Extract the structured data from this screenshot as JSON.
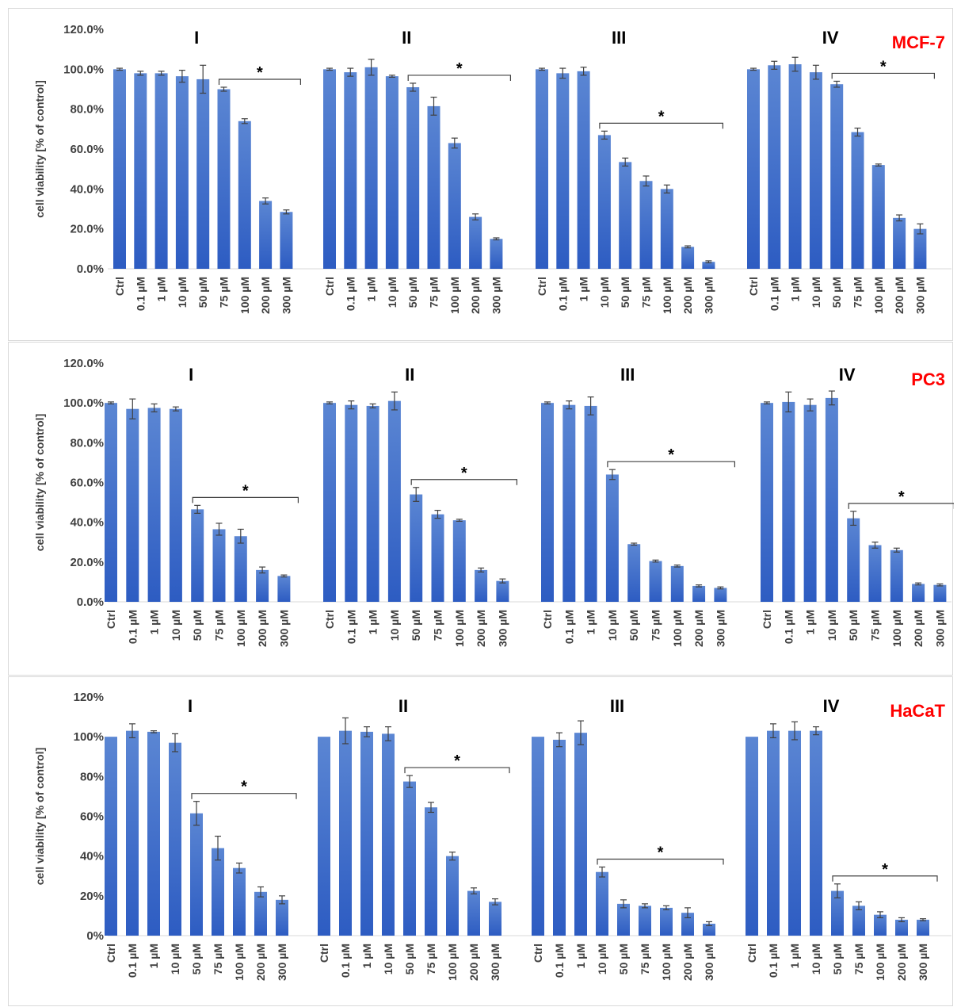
{
  "chart_data": [
    {
      "type": "bar",
      "cell_line": "MCF-7",
      "ylabel": "cell viability [% of control]",
      "ylim": [
        0,
        120
      ],
      "yticks": [
        "0.0%",
        "20.0%",
        "40.0%",
        "60.0%",
        "80.0%",
        "100.0%",
        "120.0%"
      ],
      "groups": [
        {
          "name": "I",
          "categories": [
            "Ctrl",
            "0.1 µM",
            "1 µM",
            "10 µM",
            "50 µM",
            "75 µM",
            "100 µM",
            "200 µM",
            "300 µM"
          ],
          "values": [
            100,
            98,
            98,
            96.5,
            95,
            90,
            74,
            34,
            28.5
          ],
          "errors": [
            0.5,
            1,
            1,
            3,
            7,
            1,
            1.2,
            1.5,
            1
          ],
          "significance": {
            "from": "75 µM",
            "to": "300 µM",
            "label": "*"
          }
        },
        {
          "name": "II",
          "categories": [
            "Ctrl",
            "0.1 µM",
            "1 µM",
            "10 µM",
            "50 µM",
            "75 µM",
            "100 µM",
            "200 µM",
            "300 µM"
          ],
          "values": [
            100,
            98.5,
            101,
            96.5,
            91,
            81.5,
            63,
            26,
            15
          ],
          "errors": [
            0.5,
            2,
            4,
            0.5,
            2,
            4.5,
            2.5,
            1.5,
            0.5
          ],
          "significance": {
            "from": "50 µM",
            "to": "300 µM",
            "label": "*"
          }
        },
        {
          "name": "III",
          "categories": [
            "Ctrl",
            "0.1 µM",
            "1 µM",
            "10 µM",
            "50 µM",
            "75 µM",
            "100 µM",
            "200 µM",
            "300 µM"
          ],
          "values": [
            100,
            98,
            99,
            67,
            53.5,
            44,
            40,
            11,
            3.5
          ],
          "errors": [
            0.5,
            2.5,
            2,
            2,
            2,
            2.5,
            2,
            0.5,
            0.5
          ],
          "significance": {
            "from": "10 µM",
            "to": "300 µM",
            "label": "*"
          }
        },
        {
          "name": "IV",
          "categories": [
            "Ctrl",
            "0.1 µM",
            "1 µM",
            "10 µM",
            "50 µM",
            "75 µM",
            "100 µM",
            "200 µM",
            "300 µM"
          ],
          "values": [
            100,
            102,
            102.5,
            98.5,
            92.5,
            68.5,
            52,
            25.5,
            20
          ],
          "errors": [
            0.5,
            2,
            3.5,
            3.5,
            1.5,
            2,
            0.5,
            1.5,
            2.5
          ],
          "significance": {
            "from": "50 µM",
            "to": "300 µM",
            "label": "*"
          }
        }
      ]
    },
    {
      "type": "bar",
      "cell_line": "PC3",
      "ylabel": "cell viability [% of control]",
      "ylim": [
        0,
        120
      ],
      "yticks": [
        "0.0%",
        "20.0%",
        "40.0%",
        "60.0%",
        "80.0%",
        "100.0%",
        "120.0%"
      ],
      "groups": [
        {
          "name": "I",
          "categories": [
            "Ctrl",
            "0.1 µM",
            "1 µM",
            "10 µM",
            "50 µM",
            "75 µM",
            "100 µM",
            "200 µM",
            "300 µM"
          ],
          "values": [
            100,
            97,
            97.5,
            97,
            46.5,
            36.5,
            33,
            16,
            13
          ],
          "errors": [
            0.5,
            5,
            2,
            1,
            2,
            3,
            3.5,
            1.5,
            0.5
          ],
          "significance": {
            "from": "50 µM",
            "to": "300 µM",
            "label": "*"
          }
        },
        {
          "name": "II",
          "categories": [
            "Ctrl",
            "0.1 µM",
            "1 µM",
            "10 µM",
            "50 µM",
            "75 µM",
            "100 µM",
            "200 µM",
            "300 µM"
          ],
          "values": [
            100,
            99,
            98.5,
            101,
            54,
            44,
            41,
            16,
            10.5
          ],
          "errors": [
            0.5,
            2,
            1,
            4.5,
            3.5,
            2,
            0.5,
            1,
            1
          ],
          "significance": {
            "from": "50 µM",
            "to": "300 µM",
            "label": "*"
          }
        },
        {
          "name": "III",
          "categories": [
            "Ctrl",
            "0.1 µM",
            "1 µM",
            "10 µM",
            "50 µM",
            "75 µM",
            "100 µM",
            "200 µM",
            "300 µM"
          ],
          "values": [
            100,
            99,
            98.5,
            64,
            29,
            20.5,
            18,
            8,
            7
          ],
          "errors": [
            0.5,
            2,
            4.5,
            2.5,
            0.5,
            0.5,
            0.5,
            0.5,
            0.5
          ],
          "significance": {
            "from": "10 µM",
            "to": "300 µM",
            "label": "*"
          }
        },
        {
          "name": "IV",
          "categories": [
            "Ctrl",
            "0.1 µM",
            "1 µM",
            "10 µM",
            "50 µM",
            "75 µM",
            "100 µM",
            "200 µM",
            "300 µM"
          ],
          "values": [
            100,
            100.5,
            99,
            102.5,
            42,
            28.5,
            26,
            9,
            8.5
          ],
          "errors": [
            0.5,
            5,
            3,
            3.5,
            3.5,
            1.5,
            1,
            0.5,
            0.5
          ],
          "significance": {
            "from": "50 µM",
            "to": "300 µM",
            "label": "*"
          }
        }
      ]
    },
    {
      "type": "bar",
      "cell_line": "HaCaT",
      "ylabel": "cell viability [% of control]",
      "ylim": [
        0,
        120
      ],
      "yticks": [
        "0%",
        "20%",
        "40%",
        "60%",
        "80%",
        "100%",
        "120%"
      ],
      "groups": [
        {
          "name": "I",
          "categories": [
            "Ctrl",
            "0.1 µM",
            "1 µM",
            "10 µM",
            "50 µM",
            "75 µM",
            "100 µM",
            "200 µM",
            "300 µM"
          ],
          "values": [
            100,
            103,
            102.5,
            97,
            61.5,
            44,
            34,
            22,
            18
          ],
          "errors": [
            0,
            3.5,
            0.5,
            4.5,
            6,
            6,
            2.5,
            2.5,
            2
          ],
          "significance": {
            "from": "50 µM",
            "to": "300 µM",
            "label": "*"
          }
        },
        {
          "name": "II",
          "categories": [
            "Ctrl",
            "0.1 µM",
            "1 µM",
            "10 µM",
            "50 µM",
            "75 µM",
            "100 µM",
            "200 µM",
            "300 µM"
          ],
          "values": [
            100,
            103,
            102.5,
            101.5,
            77.5,
            64.5,
            40,
            22.5,
            17
          ],
          "errors": [
            0,
            6.5,
            2.5,
            3.5,
            3,
            2.5,
            2,
            1.5,
            1.5
          ],
          "significance": {
            "from": "50 µM",
            "to": "300 µM",
            "label": "*"
          }
        },
        {
          "name": "III",
          "categories": [
            "Ctrl",
            "0.1 µM",
            "1 µM",
            "10 µM",
            "50 µM",
            "75 µM",
            "100 µM",
            "200 µM",
            "300 µM"
          ],
          "values": [
            100,
            98.5,
            102,
            32,
            16,
            15,
            14,
            11.5,
            6
          ],
          "errors": [
            0,
            3.5,
            6,
            2.5,
            2,
            1,
            1,
            2.5,
            1
          ],
          "significance": {
            "from": "10 µM",
            "to": "300 µM",
            "label": "*"
          }
        },
        {
          "name": "IV",
          "categories": [
            "Ctrl",
            "0.1 µM",
            "1 µM",
            "10 µM",
            "50 µM",
            "75 µM",
            "100 µM",
            "200 µM",
            "300 µM"
          ],
          "values": [
            100,
            103,
            103,
            103,
            22.5,
            15,
            10.5,
            8,
            8
          ],
          "errors": [
            0,
            3.5,
            4.5,
            2,
            3.5,
            2,
            1.5,
            1,
            0.5
          ],
          "significance": {
            "from": "50 µM",
            "to": "300 µM",
            "label": "*"
          }
        }
      ]
    }
  ],
  "colors": {
    "bar_top": "#5b86d3",
    "bar_bottom": "#2d5cc2",
    "cell_line_label": "#ff0000",
    "axis_text": "#404040",
    "group_label": "#000000"
  }
}
